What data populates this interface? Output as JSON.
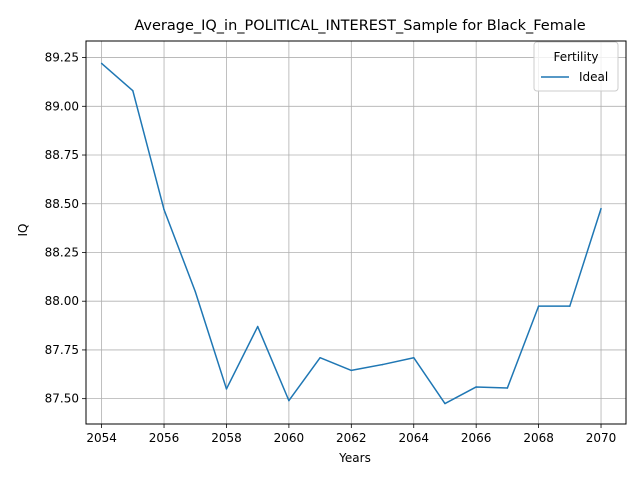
{
  "chart_data": {
    "type": "line",
    "title": "Average_IQ_in_POLITICAL_INTEREST_Sample for Black_Female",
    "xlabel": "Years",
    "ylabel": "IQ",
    "xlim": [
      2053.5,
      2070.8
    ],
    "ylim": [
      87.37,
      89.335
    ],
    "xticks": [
      2054,
      2056,
      2058,
      2060,
      2062,
      2064,
      2066,
      2068,
      2070
    ],
    "yticks": [
      87.5,
      87.75,
      88.0,
      88.25,
      88.5,
      88.75,
      89.0,
      89.25
    ],
    "ytick_labels": [
      "87.50",
      "87.75",
      "88.00",
      "88.25",
      "88.50",
      "88.75",
      "89.00",
      "89.25"
    ],
    "grid": true,
    "legend": {
      "title": "Fertility",
      "position": "top-right"
    },
    "series": [
      {
        "name": "Ideal",
        "color": "#1f77b4",
        "x": [
          2054,
          2055,
          2056,
          2057,
          2058,
          2059,
          2060,
          2061,
          2062,
          2063,
          2064,
          2065,
          2066,
          2067,
          2068,
          2069,
          2070
        ],
        "y": [
          89.22,
          89.08,
          88.47,
          88.05,
          87.55,
          87.87,
          87.49,
          87.71,
          87.645,
          87.675,
          87.71,
          87.475,
          87.56,
          87.555,
          87.975,
          87.975,
          88.475
        ]
      }
    ]
  }
}
